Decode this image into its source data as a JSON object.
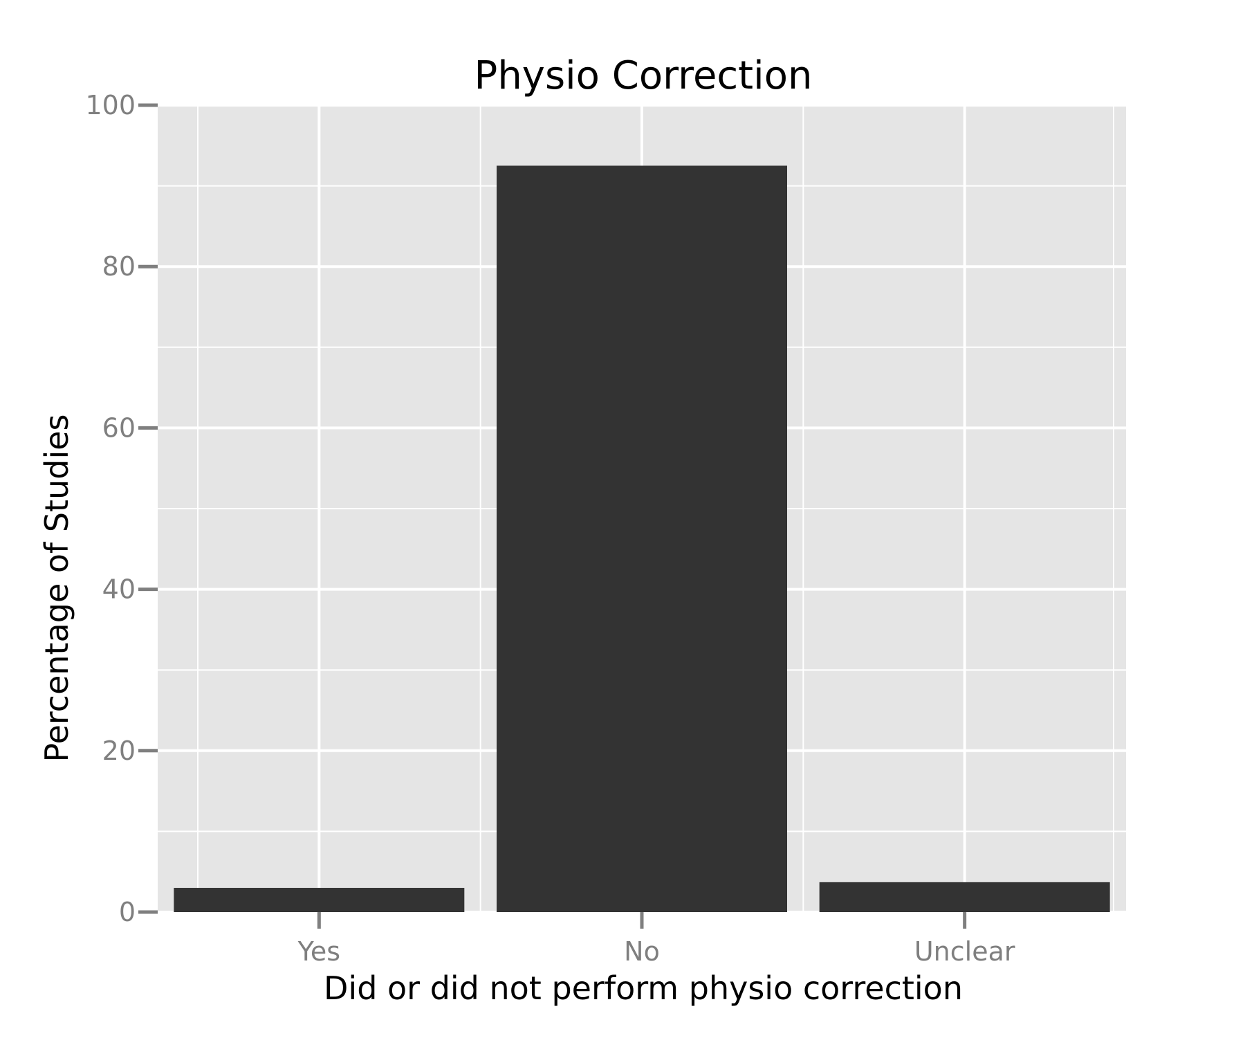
{
  "chart_data": {
    "type": "bar",
    "title": "Physio Correction",
    "xlabel": "Did or did not perform physio correction",
    "ylabel": "Percentage of Studies",
    "categories": [
      "Yes",
      "No",
      "Unclear"
    ],
    "values": [
      3.0,
      92.5,
      3.7
    ],
    "ylim": [
      0,
      100
    ],
    "yticks": [
      0,
      20,
      40,
      60,
      80,
      100
    ],
    "ytick_labels": [
      "0",
      "20",
      "40",
      "60",
      "80",
      "100"
    ],
    "grid": true,
    "legend": "none",
    "colors": {
      "bar": "#333333",
      "panel": "#e5e5e5",
      "grid": "#ffffff",
      "tick": "#7f7f7f"
    }
  }
}
